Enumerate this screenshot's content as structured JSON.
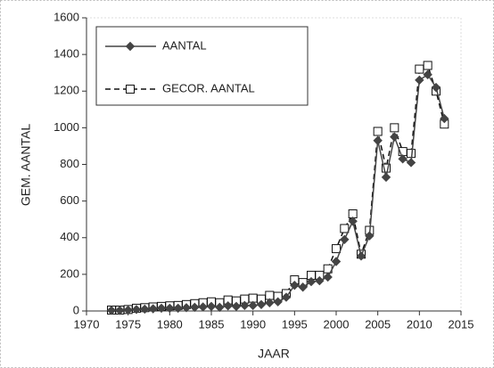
{
  "chart_data": {
    "type": "line",
    "xlabel": "JAAR",
    "ylabel": "GEM. AANTAL",
    "x": [
      1973,
      1974,
      1975,
      1976,
      1977,
      1978,
      1979,
      1980,
      1981,
      1982,
      1983,
      1984,
      1985,
      1986,
      1987,
      1988,
      1989,
      1990,
      1991,
      1992,
      1993,
      1994,
      1995,
      1996,
      1997,
      1998,
      1999,
      2000,
      2001,
      2002,
      2003,
      2004,
      2005,
      2006,
      2007,
      2008,
      2009,
      2010,
      2011,
      2012,
      2013
    ],
    "series": [
      {
        "name": "AANTAL",
        "color": "#444444",
        "marker": "diamond",
        "dashed": false,
        "values": [
          3,
          3,
          5,
          8,
          10,
          12,
          15,
          15,
          15,
          18,
          20,
          22,
          25,
          20,
          28,
          25,
          30,
          30,
          35,
          45,
          50,
          75,
          140,
          130,
          160,
          165,
          185,
          270,
          390,
          490,
          300,
          410,
          930,
          730,
          950,
          830,
          810,
          1260,
          1290,
          1220,
          1050
        ]
      },
      {
        "name": "GECOR. AANTAL",
        "color": "#111111",
        "marker": "square",
        "dashed": true,
        "values": [
          5,
          5,
          8,
          15,
          18,
          22,
          25,
          28,
          30,
          35,
          40,
          45,
          50,
          45,
          60,
          55,
          65,
          70,
          65,
          85,
          80,
          95,
          170,
          155,
          195,
          195,
          230,
          340,
          450,
          530,
          310,
          440,
          980,
          780,
          1000,
          870,
          860,
          1320,
          1340,
          1200,
          1020
        ]
      }
    ],
    "xlim": [
      1970,
      2015
    ],
    "xticks": [
      1970,
      1975,
      1980,
      1985,
      1990,
      1995,
      2000,
      2005,
      2010,
      2015
    ],
    "ylim": [
      0,
      1600
    ],
    "yticks": [
      0,
      200,
      400,
      600,
      800,
      1000,
      1200,
      1400,
      1600
    ],
    "legend": "upper left"
  }
}
